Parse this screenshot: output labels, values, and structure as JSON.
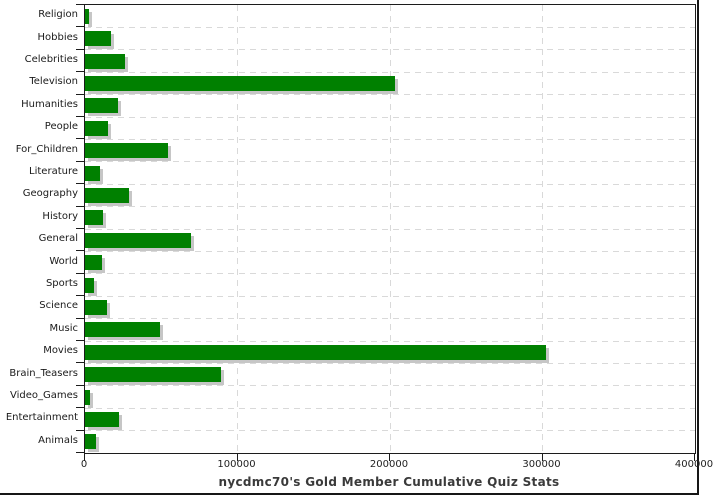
{
  "chart_data": {
    "type": "bar",
    "orientation": "horizontal",
    "title": "nycdmc70's Gold Member Cumulative Quiz Stats",
    "categories": [
      "Religion",
      "Hobbies",
      "Celebrities",
      "Television",
      "Humanities",
      "People",
      "For_Children",
      "Literature",
      "Geography",
      "History",
      "General",
      "World",
      "Sports",
      "Science",
      "Music",
      "Movies",
      "Brain_Teasers",
      "Video_Games",
      "Entertainment",
      "Animals"
    ],
    "values": [
      2600,
      17000,
      26000,
      203000,
      21500,
      15000,
      54700,
      9900,
      28700,
      11600,
      69600,
      11000,
      5700,
      14300,
      49500,
      302000,
      89000,
      3300,
      22500,
      7200
    ],
    "xlabel": "",
    "ylabel": "",
    "xlim": [
      0,
      400000
    ],
    "xticks": [
      0,
      100000,
      200000,
      300000,
      400000
    ],
    "xtick_labels": [
      "0",
      "100000",
      "200000",
      "300000",
      "400000"
    ],
    "grid": "dashed-gray",
    "legend": "none",
    "bar_color": "#008000",
    "bar_shadow_color": "#c6c6c6",
    "gridline_color": "#d9d9d9",
    "axis_color": "#1c1c1c",
    "title_color": "#3a3a3a"
  }
}
